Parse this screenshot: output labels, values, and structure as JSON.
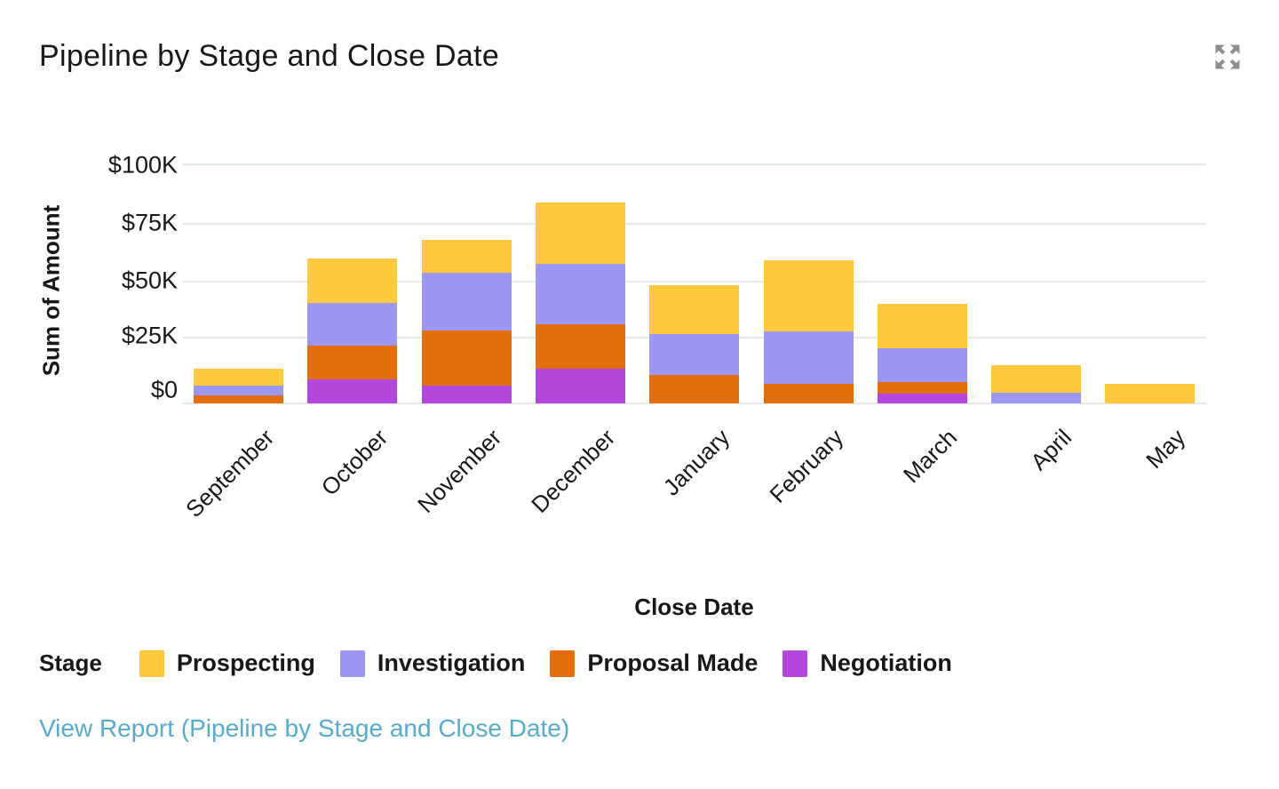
{
  "header": {
    "title": "Pipeline by Stage and Close Date"
  },
  "chart_data": {
    "type": "bar",
    "stacked": true,
    "title": "Pipeline by Stage and Close Date",
    "xlabel": "Close Date",
    "ylabel": "Sum of Amount",
    "legend_title": "Stage",
    "unit": "USD thousands",
    "categories": [
      "September",
      "October",
      "November",
      "December",
      "January",
      "February",
      "March",
      "April",
      "May"
    ],
    "series": [
      {
        "name": "Prospecting",
        "color": "#FFC83D",
        "values": [
          7,
          18.5,
          14,
          25.5,
          20.5,
          30,
          18.5,
          11.5,
          8
        ]
      },
      {
        "name": "Investigation",
        "color": "#9D97F4",
        "values": [
          4,
          18,
          24,
          25.5,
          17,
          22,
          14,
          4.5,
          0
        ]
      },
      {
        "name": "Proposal Made",
        "color": "#E26E0C",
        "values": [
          3.5,
          14,
          23,
          18.5,
          12,
          8,
          5,
          0,
          0
        ]
      },
      {
        "name": "Negotiation",
        "color": "#B346DC",
        "values": [
          0,
          10,
          7.5,
          14.5,
          0,
          0,
          4,
          0,
          0
        ]
      }
    ],
    "totals": [
      14.5,
      60.5,
      68.5,
      84,
      49.5,
      60,
      41.5,
      16,
      8
    ],
    "y_ticks": [
      "$0",
      "$25K",
      "$50K",
      "$75K",
      "$100K"
    ],
    "ylim": [
      0,
      100
    ],
    "grid": true,
    "legend_position": "bottom",
    "x_tick_rotation": -45
  },
  "footer": {
    "link_text": "View Report (Pipeline by Stage and Close Date)"
  },
  "icons": {
    "expand": "expand-icon"
  },
  "colors": {
    "gridline": "#E4EBED",
    "icon": "#8D8D8D",
    "text": "#17181A",
    "link": "#57ABCD"
  }
}
